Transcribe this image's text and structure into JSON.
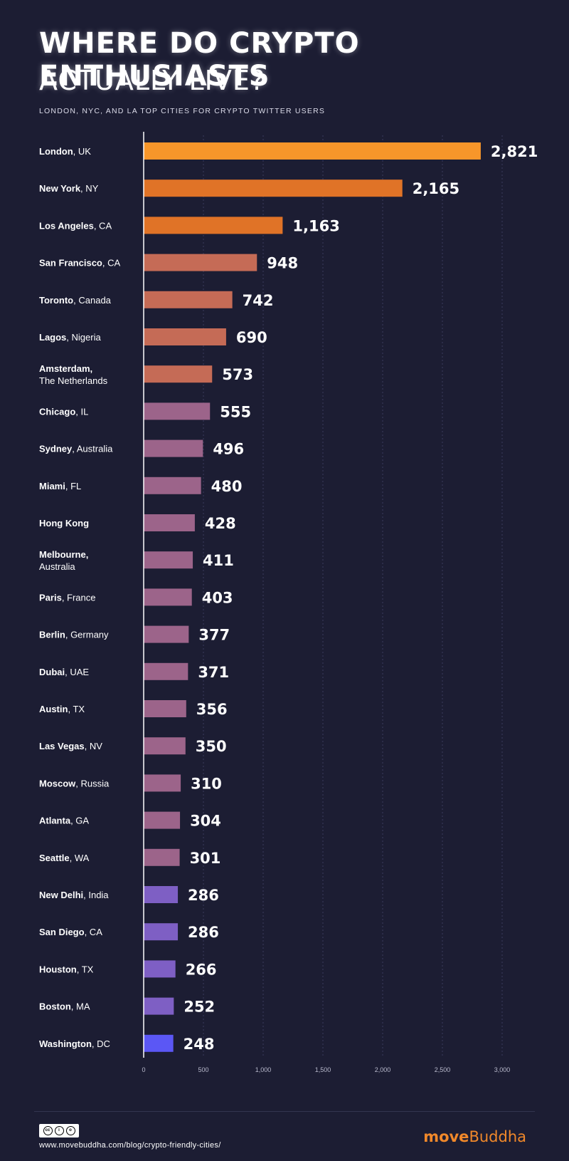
{
  "header": {
    "title_line1": "WHERE DO CRYPTO ENTHUSIASTS",
    "title_line2": "ACTUALLY LIVE?",
    "subtitle": "LONDON, NYC, AND LA TOP CITIES FOR CRYPTO TWITTER USERS"
  },
  "chart_data": {
    "type": "bar",
    "orientation": "horizontal",
    "title": "WHERE DO CRYPTO ENTHUSIASTS ACTUALLY LIVE?",
    "subtitle": "LONDON, NYC, AND LA TOP CITIES FOR CRYPTO TWITTER USERS",
    "xlim": [
      0,
      3000
    ],
    "x_ticks": [
      "0",
      "500",
      "1,000",
      "1,500",
      "2,000",
      "2,500",
      "3,000"
    ],
    "grid": true,
    "categories": [
      {
        "city": "London",
        "region": "UK",
        "value": 2821,
        "label": "2,821",
        "color": "#f7962a"
      },
      {
        "city": "New York",
        "region": "NY",
        "value": 2165,
        "label": "2,165",
        "color": "#e07327"
      },
      {
        "city": "Los Angeles",
        "region": "CA",
        "value": 1163,
        "label": "1,163",
        "color": "#e07327"
      },
      {
        "city": "San Francisco",
        "region": "CA",
        "value": 948,
        "label": "948",
        "color": "#c56b56"
      },
      {
        "city": "Toronto",
        "region": "Canada",
        "value": 742,
        "label": "742",
        "color": "#c56b56"
      },
      {
        "city": "Lagos",
        "region": "Nigeria",
        "value": 690,
        "label": "690",
        "color": "#c56b56"
      },
      {
        "city": "Amsterdam",
        "region": "The Netherlands",
        "value": 573,
        "label": "573",
        "color": "#c56b56",
        "multiline": true
      },
      {
        "city": "Chicago",
        "region": "IL",
        "value": 555,
        "label": "555",
        "color": "#9c648a"
      },
      {
        "city": "Sydney",
        "region": "Australia",
        "value": 496,
        "label": "496",
        "color": "#9c648a"
      },
      {
        "city": "Miami",
        "region": "FL",
        "value": 480,
        "label": "480",
        "color": "#9c648a"
      },
      {
        "city": "Hong Kong",
        "region": "",
        "value": 428,
        "label": "428",
        "color": "#9c648a"
      },
      {
        "city": "Melbourne",
        "region": "Australia",
        "value": 411,
        "label": "411",
        "color": "#9c648a",
        "multiline": true
      },
      {
        "city": "Paris",
        "region": "France",
        "value": 403,
        "label": "403",
        "color": "#9c648a"
      },
      {
        "city": "Berlin",
        "region": "Germany",
        "value": 377,
        "label": "377",
        "color": "#9c648a"
      },
      {
        "city": "Dubai",
        "region": "UAE",
        "value": 371,
        "label": "371",
        "color": "#9c648a"
      },
      {
        "city": "Austin",
        "region": "TX",
        "value": 356,
        "label": "356",
        "color": "#9c648a"
      },
      {
        "city": "Las Vegas",
        "region": "NV",
        "value": 350,
        "label": "350",
        "color": "#9c648a"
      },
      {
        "city": "Moscow",
        "region": "Russia",
        "value": 310,
        "label": "310",
        "color": "#9c648a"
      },
      {
        "city": "Atlanta",
        "region": "GA",
        "value": 304,
        "label": "304",
        "color": "#9c648a"
      },
      {
        "city": "Seattle",
        "region": "WA",
        "value": 301,
        "label": "301",
        "color": "#9c648a"
      },
      {
        "city": "New Delhi",
        "region": "India",
        "value": 286,
        "label": "286",
        "color": "#7e5fc4"
      },
      {
        "city": "San Diego",
        "region": "CA",
        "value": 286,
        "label": "286",
        "color": "#7e5fc4"
      },
      {
        "city": "Houston",
        "region": "TX",
        "value": 266,
        "label": "266",
        "color": "#7e5fc4"
      },
      {
        "city": "Boston",
        "region": "MA",
        "value": 252,
        "label": "252",
        "color": "#7e5fc4"
      },
      {
        "city": "Washington",
        "region": "DC",
        "value": 248,
        "label": "248",
        "color": "#5b57f5"
      }
    ]
  },
  "footer": {
    "license": "CC BY SA",
    "url": "www.movebuddha.com/blog/crypto-friendly-cities/",
    "brand_bold": "move",
    "brand_light": "Buddha",
    "brand_color": "#f0882a"
  }
}
